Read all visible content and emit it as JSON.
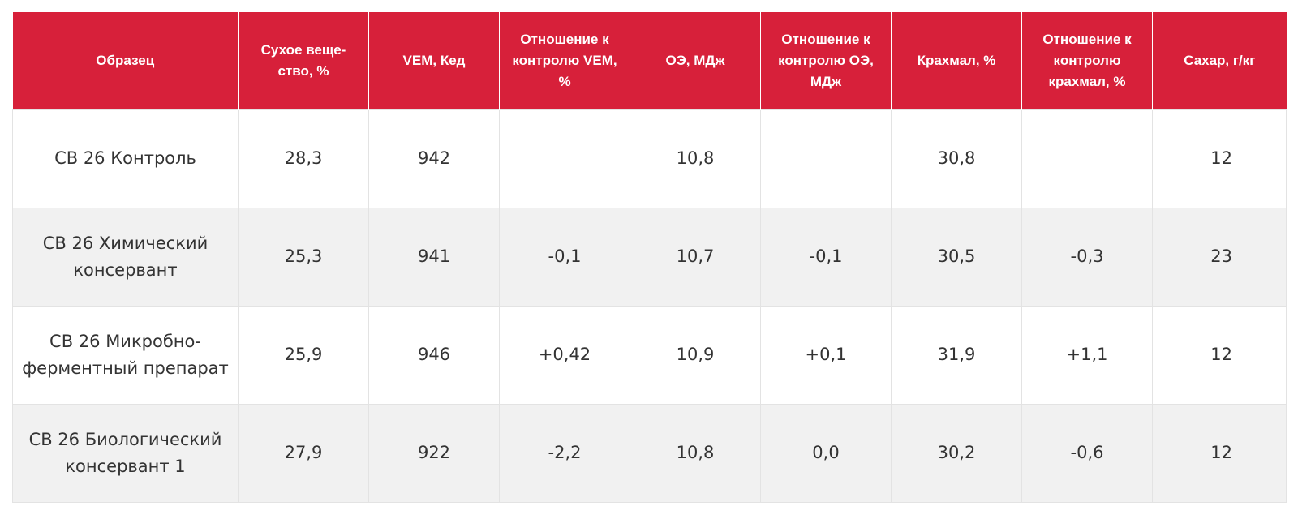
{
  "table": {
    "headers": [
      "Образец",
      "Сухое веще-ство, %",
      "VEM, Кед",
      "Отношение к контролю VEM, %",
      "ОЭ, МДж",
      "Отношение к контролю ОЭ, МДж",
      "Крахмал, %",
      "Отношение к контролю крахмал, %",
      "Сахар, г/кг"
    ],
    "rows": [
      [
        "СВ 26 Контроль",
        "28,3",
        "942",
        "",
        "10,8",
        "",
        "30,8",
        "",
        "12"
      ],
      [
        "СВ 26 Химический консервант",
        "25,3",
        "941",
        "-0,1",
        "10,7",
        "-0,1",
        "30,5",
        "-0,3",
        "23"
      ],
      [
        "СВ 26 Микробно-ферментный препарат",
        "25,9",
        "946",
        "+0,42",
        "10,9",
        "+0,1",
        "31,9",
        "+1,1",
        "12"
      ],
      [
        "СВ 26 Биологический консервант 1",
        "27,9",
        "922",
        "-2,2",
        "10,8",
        "0,0",
        "30,2",
        "-0,6",
        "12"
      ]
    ]
  },
  "colors": {
    "header_bg": "#d7203a",
    "header_text": "#ffffff",
    "body_text": "#333333",
    "row_alt_bg": "#f1f1f1",
    "grid": "#e3e3e3"
  }
}
